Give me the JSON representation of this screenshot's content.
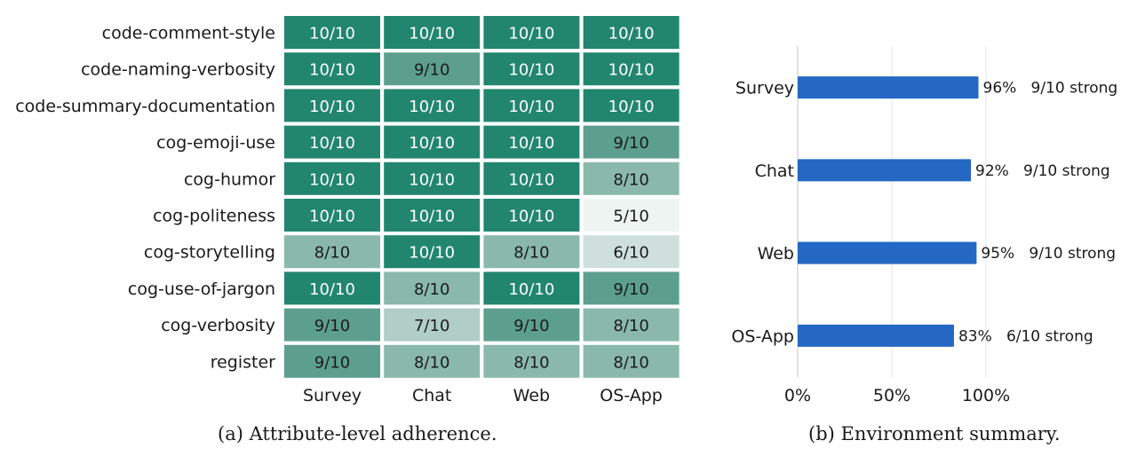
{
  "captions": {
    "left": "(a) Attribute-level adherence.",
    "right": "(b) Environment summary."
  },
  "chart_data": [
    {
      "type": "heatmap",
      "columns": [
        "Survey",
        "Chat",
        "Web",
        "OS-App"
      ],
      "rows": [
        "code-comment-style",
        "code-naming-verbosity",
        "code-summary-documentation",
        "cog-emoji-use",
        "cog-humor",
        "cog-politeness",
        "cog-storytelling",
        "cog-use-of-jargon",
        "cog-verbosity",
        "register"
      ],
      "values": [
        [
          10,
          10,
          10,
          10
        ],
        [
          10,
          9,
          10,
          10
        ],
        [
          10,
          10,
          10,
          10
        ],
        [
          10,
          10,
          10,
          9
        ],
        [
          10,
          10,
          10,
          8
        ],
        [
          10,
          10,
          10,
          5
        ],
        [
          8,
          10,
          8,
          6
        ],
        [
          10,
          8,
          10,
          9
        ],
        [
          9,
          7,
          9,
          8
        ],
        [
          9,
          8,
          8,
          8
        ]
      ],
      "value_format": "{v}/10",
      "max_value": 10,
      "colors": {
        "10": "#22866f",
        "9": "#5d9f8f",
        "8": "#8ab9ac",
        "7": "#b0cec6",
        "6": "#cfe0dc",
        "5": "#edf4f2"
      },
      "text_color": "#1a1a1a",
      "text_color_on_full": "#ffffff"
    },
    {
      "type": "bar",
      "orientation": "horizontal",
      "categories": [
        "Survey",
        "Chat",
        "Web",
        "OS-App"
      ],
      "values": [
        96,
        92,
        95,
        83
      ],
      "annotations": [
        "96%   9/10 strong",
        "92%   9/10 strong",
        "95%   9/10 strong",
        "83%   6/10 strong"
      ],
      "xlim": [
        0,
        100
      ],
      "xticks": [
        "0%",
        "50%",
        "100%"
      ],
      "bar_color": "#2468c4",
      "grid": true,
      "grid_color": "#e4e4e4"
    }
  ]
}
